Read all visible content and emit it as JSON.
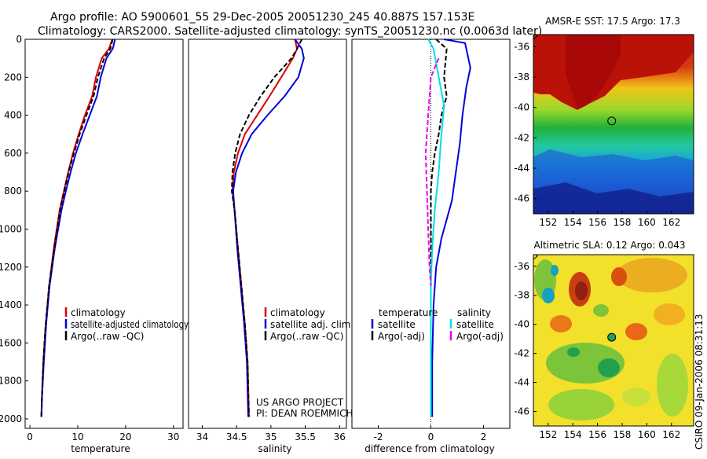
{
  "header": {
    "line1": "Argo profile: AO 5900601_55 29-Dec-2005 20051230_245 40.887S 157.153E",
    "line2": "Climatology: CARS2000. Satellite-adjusted climatology: synTS_20051230.nc (0.0063d later)"
  },
  "credits": {
    "project_line1": "US ARGO PROJECT",
    "project_line2": "PI: DEAN ROEMMICH",
    "stamp": "CSIRO 09-Jan-2006 08:31:13"
  },
  "colors": {
    "climatology": "#dd0000",
    "satellite": "#0000dd",
    "argo": "#000000",
    "temp_sat_diff": "#0000dd",
    "sal_sat_diff": "#00e0e0",
    "sal_argo_diff": "#ee00ee"
  },
  "chart_data": [
    {
      "type": "line",
      "xlabel": "temperature",
      "ylabel": "",
      "xlim": [
        -1,
        32
      ],
      "ylim": [
        2050,
        0
      ],
      "xticks": [
        0,
        10,
        20,
        30
      ],
      "yticks": [
        0,
        200,
        400,
        600,
        800,
        1000,
        1200,
        1400,
        1600,
        1800,
        2000
      ],
      "legend": [
        "climatology",
        "satellite-adjusted climatology",
        "Argo(..raw -QC)"
      ],
      "series": [
        {
          "name": "climatology",
          "style": "solid",
          "color": "#dd0000",
          "x": [
            17.2,
            16.5,
            15.0,
            13.8,
            13.0,
            11.5,
            10.2,
            9.0,
            8.0,
            7.1,
            6.2,
            5.0,
            4.0,
            3.3,
            2.8,
            2.5,
            2.4
          ],
          "y": [
            0,
            50,
            100,
            200,
            300,
            400,
            500,
            600,
            700,
            800,
            900,
            1100,
            1300,
            1500,
            1700,
            1900,
            1990
          ]
        },
        {
          "name": "satellite-adjusted climatology",
          "style": "solid",
          "color": "#0000dd",
          "x": [
            17.8,
            17.3,
            16.0,
            14.8,
            14.0,
            12.5,
            11.0,
            9.6,
            8.5,
            7.5,
            6.6,
            5.2,
            4.1,
            3.4,
            2.9,
            2.5,
            2.4
          ],
          "y": [
            0,
            50,
            100,
            200,
            300,
            400,
            500,
            600,
            700,
            800,
            900,
            1100,
            1300,
            1500,
            1700,
            1900,
            1990
          ]
        },
        {
          "name": "Argo(..raw -QC)",
          "style": "dashed",
          "color": "#000000",
          "x": [
            17.3,
            16.8,
            15.5,
            14.2,
            13.3,
            11.8,
            10.4,
            9.2,
            8.1,
            7.2,
            6.3,
            5.1,
            4.0,
            3.3,
            2.8,
            2.5,
            2.4
          ],
          "y": [
            0,
            50,
            100,
            200,
            300,
            400,
            500,
            600,
            700,
            800,
            900,
            1100,
            1300,
            1500,
            1700,
            1900,
            1990
          ]
        }
      ]
    },
    {
      "type": "line",
      "xlabel": "salinity",
      "ylabel": "",
      "xlim": [
        33.8,
        36.1
      ],
      "ylim": [
        2050,
        0
      ],
      "xticks": [
        34,
        34.5,
        35,
        35.5,
        36
      ],
      "xticklabels": [
        "34",
        "34.5",
        "35",
        "35.5",
        "36"
      ],
      "legend": [
        "climatology",
        "satellite adj. clim.",
        "Argo(..raw -QC)"
      ],
      "series": [
        {
          "name": "climatology",
          "style": "solid",
          "color": "#dd0000",
          "x": [
            35.35,
            35.38,
            35.32,
            35.15,
            34.98,
            34.8,
            34.62,
            34.52,
            34.46,
            34.44,
            34.47,
            34.52,
            34.57,
            34.62,
            34.66,
            34.68
          ],
          "y": [
            0,
            50,
            100,
            200,
            300,
            400,
            500,
            600,
            700,
            800,
            900,
            1100,
            1300,
            1500,
            1700,
            1990
          ]
        },
        {
          "name": "satellite adj. clim.",
          "style": "solid",
          "color": "#0000dd",
          "x": [
            35.35,
            35.45,
            35.48,
            35.4,
            35.2,
            34.95,
            34.72,
            34.58,
            34.49,
            34.45,
            34.47,
            34.51,
            34.56,
            34.61,
            34.65,
            34.67
          ],
          "y": [
            0,
            50,
            100,
            200,
            300,
            400,
            500,
            600,
            700,
            800,
            900,
            1100,
            1300,
            1500,
            1700,
            1990
          ]
        },
        {
          "name": "Argo(..raw -QC)",
          "style": "dashed",
          "color": "#000000",
          "x": [
            35.45,
            35.38,
            35.3,
            35.05,
            34.85,
            34.68,
            34.55,
            34.48,
            34.44,
            34.43,
            34.47,
            34.52,
            34.57,
            34.62,
            34.66,
            34.68
          ],
          "y": [
            0,
            50,
            100,
            200,
            300,
            400,
            500,
            600,
            700,
            800,
            900,
            1100,
            1300,
            1500,
            1700,
            1990
          ]
        }
      ]
    },
    {
      "type": "line",
      "xlabel": "difference from climatology",
      "ylabel": "",
      "xlim": [
        -3,
        3
      ],
      "ylim": [
        2050,
        0
      ],
      "xticks": [
        -2,
        0,
        2
      ],
      "legend_groups": [
        {
          "title": "temperature",
          "items": [
            "satellite",
            "Argo(-adj)"
          ]
        },
        {
          "title": "salinity",
          "items": [
            "satellite",
            "Argo(-adj)"
          ]
        }
      ],
      "series": [
        {
          "name": "temperature satellite",
          "style": "solid",
          "color": "#0000dd",
          "x": [
            0.5,
            1.3,
            1.5,
            1.35,
            1.2,
            1.1,
            1.0,
            0.9,
            0.8,
            0.6,
            0.4,
            0.2,
            0.1,
            0.05,
            0.05
          ],
          "y": [
            0,
            20,
            150,
            250,
            400,
            550,
            650,
            750,
            850,
            950,
            1050,
            1200,
            1400,
            1700,
            1990
          ]
        },
        {
          "name": "temperature Argo(-adj)",
          "style": "dashed",
          "color": "#000000",
          "x": [
            0.2,
            0.6,
            0.5,
            0.6,
            0.4,
            0.3,
            0.15,
            0.05,
            0.0,
            0.0,
            0.0,
            0.0,
            0.0
          ],
          "y": [
            0,
            50,
            200,
            300,
            400,
            500,
            600,
            700,
            800,
            900,
            1100,
            1500,
            1990
          ]
        },
        {
          "name": "salinity satellite",
          "style": "solid",
          "color": "#00e0e0",
          "x": [
            -0.1,
            0.1,
            0.3,
            0.5,
            0.4,
            0.3,
            0.15,
            0.05,
            0.0,
            0.0,
            0.0
          ],
          "y": [
            0,
            50,
            200,
            350,
            500,
            700,
            900,
            1100,
            1300,
            1600,
            1990
          ]
        },
        {
          "name": "salinity Argo(-adj)",
          "style": "dashed",
          "color": "#ee00ee",
          "x": [
            0.3,
            0.0,
            -0.1,
            -0.2,
            -0.15,
            -0.1,
            -0.05,
            0.0
          ],
          "y": [
            100,
            200,
            400,
            600,
            800,
            1000,
            1200,
            1300
          ]
        }
      ]
    },
    {
      "type": "heatmap",
      "title": "AMSR-E SST: 17.5 Argo: 17.3",
      "xticks": [
        152,
        154,
        156,
        158,
        160,
        162
      ],
      "yticks": [
        -36,
        -38,
        -40,
        -42,
        -44,
        -46
      ],
      "xlim": [
        150.8,
        163.8
      ],
      "ylim": [
        -47,
        -35.2
      ],
      "argo_marker": {
        "lon": 157.153,
        "lat": -40.887
      }
    },
    {
      "type": "heatmap",
      "title": "Altimetric SLA: 0.12 Argo: 0.043",
      "xticks": [
        152,
        154,
        156,
        158,
        160,
        162
      ],
      "yticks": [
        -36,
        -38,
        -40,
        -42,
        -44,
        -46
      ],
      "xlim": [
        150.8,
        163.8
      ],
      "ylim": [
        -47,
        -35.2
      ],
      "argo_marker": {
        "lon": 157.153,
        "lat": -40.887
      }
    }
  ]
}
